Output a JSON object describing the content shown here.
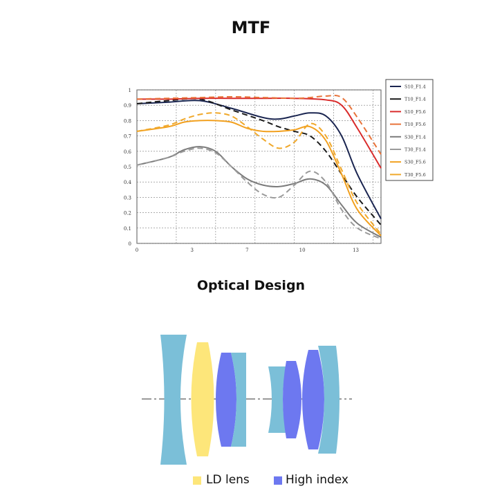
{
  "titles": {
    "mtf": "MTF",
    "design": "Optical Design"
  },
  "chart_data": {
    "type": "line",
    "title": "MTF",
    "xlim": [
      0,
      15.5
    ],
    "ylim": [
      0,
      1
    ],
    "x_ticks": [
      0,
      3,
      7,
      10,
      13
    ],
    "y_ticks": [
      0,
      0.1,
      0.2,
      0.3,
      0.4,
      0.5,
      0.6,
      0.7,
      0.8,
      0.9,
      1
    ],
    "y_tick_labels": [
      "0",
      "0.1",
      "0.2",
      "0.3",
      "0.4",
      "0.5",
      "0.6",
      "0.7",
      "0.8",
      "0.9",
      "1"
    ],
    "x_tick_labels": [
      "0",
      "3",
      "7",
      "10",
      "13"
    ],
    "grid": true,
    "legend_position": "right",
    "series": [
      {
        "name": "S10_F1.4",
        "color": "#1a2550",
        "dash": false,
        "x": [
          0,
          2,
          4,
          6,
          8,
          9,
          10,
          11,
          12,
          13,
          14,
          15.5
        ],
        "y": [
          0.91,
          0.92,
          0.93,
          0.88,
          0.82,
          0.81,
          0.83,
          0.85,
          0.83,
          0.7,
          0.45,
          0.16
        ]
      },
      {
        "name": "T10_F1.4",
        "color": "#1a1a1a",
        "dash": true,
        "x": [
          0,
          2,
          4,
          6,
          8,
          9,
          10,
          11,
          12,
          13,
          14,
          15.5
        ],
        "y": [
          0.91,
          0.93,
          0.94,
          0.87,
          0.8,
          0.76,
          0.73,
          0.7,
          0.6,
          0.45,
          0.3,
          0.12
        ]
      },
      {
        "name": "S10_F5.6",
        "color": "#d92b2b",
        "dash": false,
        "x": [
          0,
          2,
          4,
          6,
          8,
          10,
          12,
          13,
          14,
          15.5
        ],
        "y": [
          0.94,
          0.94,
          0.945,
          0.945,
          0.945,
          0.945,
          0.935,
          0.9,
          0.75,
          0.49
        ]
      },
      {
        "name": "T10_F5.6",
        "color": "#e8733a",
        "dash": true,
        "x": [
          0,
          2,
          4,
          6,
          8,
          10,
          11,
          12,
          13,
          14,
          15.5
        ],
        "y": [
          0.94,
          0.945,
          0.95,
          0.955,
          0.95,
          0.945,
          0.95,
          0.96,
          0.95,
          0.82,
          0.58
        ]
      },
      {
        "name": "S30_F1.4",
        "color": "#7b7b7b",
        "dash": false,
        "x": [
          0,
          2,
          3,
          4,
          5,
          6,
          7,
          8,
          9,
          10,
          11,
          12,
          13,
          14,
          15.5
        ],
        "y": [
          0.51,
          0.56,
          0.61,
          0.63,
          0.6,
          0.5,
          0.42,
          0.38,
          0.37,
          0.39,
          0.42,
          0.38,
          0.25,
          0.13,
          0.04
        ]
      },
      {
        "name": "T30_F1.4",
        "color": "#9a9a9a",
        "dash": true,
        "x": [
          0,
          2,
          3,
          4,
          5,
          6,
          7,
          8,
          9,
          10,
          11,
          12,
          13,
          14,
          15.5
        ],
        "y": [
          0.51,
          0.56,
          0.6,
          0.62,
          0.59,
          0.5,
          0.4,
          0.32,
          0.3,
          0.38,
          0.47,
          0.4,
          0.22,
          0.1,
          0.03
        ]
      },
      {
        "name": "S30_F5.6",
        "color": "#f2a01e",
        "dash": false,
        "x": [
          0,
          2,
          3,
          4,
          5,
          6,
          7,
          8,
          9,
          10,
          11,
          12,
          13,
          14,
          15.5
        ],
        "y": [
          0.73,
          0.76,
          0.79,
          0.8,
          0.8,
          0.79,
          0.75,
          0.73,
          0.73,
          0.74,
          0.76,
          0.67,
          0.45,
          0.22,
          0.05
        ]
      },
      {
        "name": "T30_F5.6",
        "color": "#f0a82a",
        "dash": true,
        "x": [
          0,
          2,
          3,
          4,
          5,
          6,
          7,
          8,
          9,
          10,
          11,
          12,
          13,
          14,
          15.5
        ],
        "y": [
          0.73,
          0.77,
          0.81,
          0.84,
          0.85,
          0.83,
          0.76,
          0.68,
          0.62,
          0.66,
          0.78,
          0.7,
          0.48,
          0.26,
          0.06
        ]
      }
    ]
  },
  "lens_legend": [
    {
      "label": "LD lens",
      "color": "#fde67a"
    },
    {
      "label": "High index",
      "color": "#6d78f0"
    }
  ],
  "lens_colors": {
    "blue_light": "#7bbfd8",
    "ld": "#fde67a",
    "high_index": "#6d78f0"
  }
}
